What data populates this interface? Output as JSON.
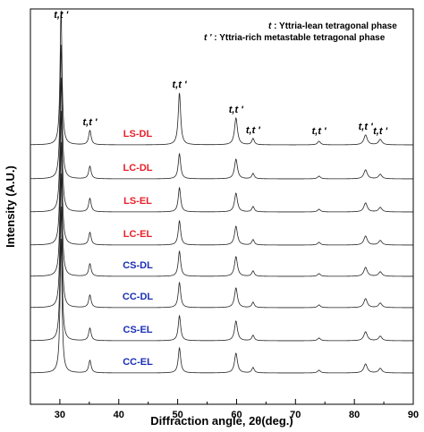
{
  "chart_data": {
    "type": "line",
    "xlabel": "Diffraction angle, 2θ(deg.)",
    "ylabel": "Intensity (A.U.)",
    "xlim": [
      25,
      90
    ],
    "x_ticks": [
      "30",
      "40",
      "50",
      "60",
      "70",
      "80",
      "90"
    ],
    "legend_note": [
      {
        "symbol": "t",
        "text": " : Yttria-lean tetragonal phase"
      },
      {
        "symbol": "t '",
        "text": " : Yttria-rich metastable tetragonal phase"
      }
    ],
    "peak_labels": [
      {
        "text": "t,t '",
        "x": 30.2
      },
      {
        "text": "t,t '",
        "x": 35.1
      },
      {
        "text": "t,t '",
        "x": 50.3
      },
      {
        "text": "t,t '",
        "x": 59.9
      },
      {
        "text": "t,t '",
        "x": 62.8
      },
      {
        "text": "t,t '",
        "x": 74.0
      },
      {
        "text": "t,t '",
        "x": 81.9
      },
      {
        "text": "t,t '",
        "x": 84.4
      }
    ],
    "peaks": [
      {
        "x": 30.2,
        "w": 0.2
      },
      {
        "x": 35.1,
        "w": 0.25
      },
      {
        "x": 50.3,
        "w": 0.25
      },
      {
        "x": 59.9,
        "w": 0.3
      },
      {
        "x": 62.8,
        "w": 0.25
      },
      {
        "x": 74.0,
        "w": 0.3
      },
      {
        "x": 81.9,
        "w": 0.35
      },
      {
        "x": 84.4,
        "w": 0.35
      }
    ],
    "series": [
      {
        "label": "LS-DL",
        "color": "#e8202a",
        "intensities": [
          150,
          16,
          58,
          30,
          7,
          4,
          11,
          6
        ]
      },
      {
        "label": "LC-DL",
        "color": "#e8202a",
        "intensities": [
          150,
          14,
          28,
          22,
          6,
          3,
          10,
          5
        ]
      },
      {
        "label": "LS-EL",
        "color": "#e8202a",
        "intensities": [
          150,
          15,
          27,
          21,
          6,
          3,
          10,
          5
        ]
      },
      {
        "label": "LC-EL",
        "color": "#e8202a",
        "intensities": [
          150,
          14,
          27,
          21,
          6,
          3,
          10,
          5
        ]
      },
      {
        "label": "CS-DL",
        "color": "#1a2fb4",
        "intensities": [
          150,
          14,
          28,
          22,
          6,
          3,
          10,
          5
        ]
      },
      {
        "label": "CC-DL",
        "color": "#1a2fb4",
        "intensities": [
          150,
          14,
          28,
          22,
          6,
          3,
          10,
          5
        ]
      },
      {
        "label": "CS-EL",
        "color": "#1a2fb4",
        "intensities": [
          150,
          14,
          28,
          22,
          6,
          3,
          10,
          5
        ]
      },
      {
        "label": "CC-EL",
        "color": "#1a2fb4",
        "intensities": [
          150,
          14,
          28,
          22,
          6,
          3,
          10,
          5
        ]
      }
    ]
  }
}
